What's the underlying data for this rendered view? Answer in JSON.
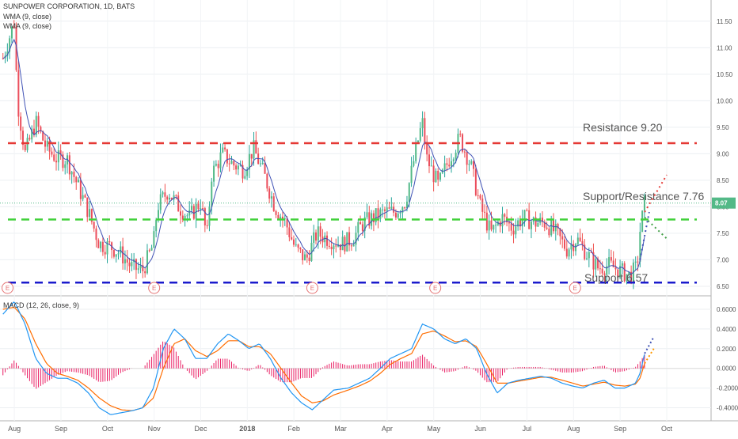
{
  "chart_data": [
    {
      "type": "candlestick",
      "title": "SUNPOWER CORPORATION, 1D, BATS",
      "indicators": [
        "WMA (9, close)",
        "WMA (9, close)"
      ],
      "y_ticks": [
        6.5,
        7.0,
        7.5,
        8.0,
        8.5,
        9.0,
        9.5,
        10.0,
        10.5,
        11.0,
        11.5
      ],
      "y_tick_labels": [
        "6.50",
        "7.00",
        "7.50",
        "8.00",
        "8.50",
        "9.00",
        "9.50",
        "10.00",
        "10.50",
        "11.00",
        "11.50"
      ],
      "ylim": [
        6.35,
        11.9
      ],
      "x_ticks": [
        "Aug",
        "Sep",
        "Oct",
        "Nov",
        "Dec",
        "2018",
        "Feb",
        "Mar",
        "Apr",
        "May",
        "Jun",
        "Jul",
        "Aug",
        "Sep",
        "Oct"
      ],
      "current_price": "8.07",
      "current_value": 8.07,
      "price_path": [
        [
          "Jul 24",
          10.8
        ],
        [
          "Aug 01",
          11.5
        ],
        [
          "Aug 03",
          10.0
        ],
        [
          "Aug 08",
          9.0
        ],
        [
          "Aug 15",
          9.6
        ],
        [
          "Aug 22",
          9.1
        ],
        [
          "Aug 29",
          8.9
        ],
        [
          "Sep 05",
          8.9
        ],
        [
          "Sep 12",
          8.4
        ],
        [
          "Sep 19",
          7.9
        ],
        [
          "Sep 26",
          7.3
        ],
        [
          "Oct 03",
          7.25
        ],
        [
          "Oct 10",
          7.1
        ],
        [
          "Oct 17",
          6.85
        ],
        [
          "Oct 24",
          6.8
        ],
        [
          "Oct 31",
          7.3
        ],
        [
          "Nov 03",
          8.0
        ],
        [
          "Nov 10",
          8.3
        ],
        [
          "Nov 17",
          8.0
        ],
        [
          "Nov 24",
          7.8
        ],
        [
          "Dec 01",
          8.1
        ],
        [
          "Dec 05",
          7.4
        ],
        [
          "Dec 08",
          8.6
        ],
        [
          "Dec 15",
          9.0
        ],
        [
          "Dec 22",
          8.8
        ],
        [
          "Dec 29",
          8.7
        ],
        [
          "Jan 05",
          9.1
        ],
        [
          "Jan 12",
          8.6
        ],
        [
          "Jan 19",
          8.0
        ],
        [
          "Jan 26",
          7.7
        ],
        [
          "Feb 02",
          7.2
        ],
        [
          "Feb 09",
          7.0
        ],
        [
          "Feb 16",
          7.5
        ],
        [
          "Feb 23",
          7.4
        ],
        [
          "Mar 02",
          7.3
        ],
        [
          "Mar 09",
          7.4
        ],
        [
          "Mar 16",
          7.7
        ],
        [
          "Mar 23",
          7.8
        ],
        [
          "Mar 30",
          7.9
        ],
        [
          "Apr 06",
          7.9
        ],
        [
          "Apr 13",
          8.1
        ],
        [
          "Apr 20",
          9.1
        ],
        [
          "Apr 24",
          9.6
        ],
        [
          "Apr 27",
          8.9
        ],
        [
          "May 04",
          8.4
        ],
        [
          "May 11",
          8.9
        ],
        [
          "May 18",
          9.3
        ],
        [
          "May 25",
          8.8
        ],
        [
          "Jun 01",
          8.0
        ],
        [
          "Jun 08",
          7.5
        ],
        [
          "Jun 15",
          7.8
        ],
        [
          "Jun 22",
          7.6
        ],
        [
          "Jun 29",
          7.8
        ],
        [
          "Jul 06",
          7.7
        ],
        [
          "Jul 13",
          7.7
        ],
        [
          "Jul 20",
          7.5
        ],
        [
          "Jul 27",
          7.2
        ],
        [
          "Aug 03",
          7.4
        ],
        [
          "Aug 10",
          7.1
        ],
        [
          "Aug 17",
          6.85
        ],
        [
          "Aug 24",
          6.9
        ],
        [
          "Aug 31",
          6.8
        ],
        [
          "Sep 07",
          6.7
        ],
        [
          "Sep 12",
          6.85
        ],
        [
          "Sep 14",
          7.55
        ],
        [
          "Sep 17",
          8.07
        ]
      ],
      "projections": [
        {
          "color": "#e53935",
          "from": [
            "Sep 17",
            7.9
          ],
          "to": [
            "Oct 01",
            8.6
          ]
        },
        {
          "color": "#43a047",
          "from": [
            "Sep 17",
            7.8
          ],
          "to": [
            "Oct 01",
            7.4
          ]
        },
        {
          "color": "#3f51b5",
          "from": [
            "Sep 14",
            7.0
          ],
          "to": [
            "Sep 20",
            7.9
          ]
        }
      ],
      "levels": [
        {
          "label": "Resistance 9.20",
          "value": 9.2,
          "color": "#e53935"
        },
        {
          "label": "Support/Resistance 7.76",
          "value": 7.76,
          "color": "#43d13c"
        },
        {
          "label": "Support 6.57",
          "value": 6.57,
          "color": "#1a1acc"
        }
      ],
      "event_markers": [
        "E",
        "E",
        "E",
        "E",
        "E"
      ],
      "event_dates": [
        "Jul 27",
        "Nov 01",
        "Feb 13",
        "May 02",
        "Aug 02"
      ],
      "grid": true
    },
    {
      "type": "line",
      "title": "MACD (12, 26, close, 9)",
      "y_ticks": [
        -0.4,
        -0.2,
        0.0,
        0.2,
        0.4,
        0.6
      ],
      "y_tick_labels": [
        "-0.4000",
        "-0.2000",
        "0.0000",
        "0.2000",
        "0.4000",
        "0.6000"
      ],
      "ylim": [
        -0.5,
        0.72
      ],
      "series": [
        {
          "name": "MACD",
          "color": "#2196f3",
          "points": [
            [
              "Jul 24",
              0.55
            ],
            [
              "Aug 01",
              0.68
            ],
            [
              "Aug 08",
              0.45
            ],
            [
              "Aug 15",
              0.1
            ],
            [
              "Aug 22",
              -0.05
            ],
            [
              "Aug 29",
              -0.1
            ],
            [
              "Sep 05",
              -0.1
            ],
            [
              "Sep 12",
              -0.15
            ],
            [
              "Sep 19",
              -0.25
            ],
            [
              "Sep 26",
              -0.4
            ],
            [
              "Oct 03",
              -0.47
            ],
            [
              "Oct 10",
              -0.45
            ],
            [
              "Oct 17",
              -0.43
            ],
            [
              "Oct 24",
              -0.4
            ],
            [
              "Oct 31",
              -0.2
            ],
            [
              "Nov 07",
              0.2
            ],
            [
              "Nov 14",
              0.4
            ],
            [
              "Nov 21",
              0.3
            ],
            [
              "Nov 28",
              0.1
            ],
            [
              "Dec 05",
              0.1
            ],
            [
              "Dec 12",
              0.25
            ],
            [
              "Dec 19",
              0.35
            ],
            [
              "Dec 26",
              0.28
            ],
            [
              "Jan 02",
              0.2
            ],
            [
              "Jan 09",
              0.25
            ],
            [
              "Jan 16",
              0.1
            ],
            [
              "Jan 23",
              -0.1
            ],
            [
              "Jan 30",
              -0.25
            ],
            [
              "Feb 06",
              -0.35
            ],
            [
              "Feb 13",
              -0.42
            ],
            [
              "Feb 20",
              -0.32
            ],
            [
              "Feb 27",
              -0.22
            ],
            [
              "Mar 06",
              -0.2
            ],
            [
              "Mar 13",
              -0.15
            ],
            [
              "Mar 20",
              -0.1
            ],
            [
              "Mar 27",
              0.0
            ],
            [
              "Apr 03",
              0.1
            ],
            [
              "Apr 10",
              0.15
            ],
            [
              "Apr 17",
              0.2
            ],
            [
              "Apr 24",
              0.45
            ],
            [
              "May 01",
              0.4
            ],
            [
              "May 08",
              0.3
            ],
            [
              "May 15",
              0.25
            ],
            [
              "May 22",
              0.3
            ],
            [
              "May 29",
              0.2
            ],
            [
              "Jun 05",
              -0.05
            ],
            [
              "Jun 12",
              -0.25
            ],
            [
              "Jun 19",
              -0.15
            ],
            [
              "Jun 26",
              -0.12
            ],
            [
              "Jul 03",
              -0.1
            ],
            [
              "Jul 10",
              -0.08
            ],
            [
              "Jul 17",
              -0.1
            ],
            [
              "Jul 24",
              -0.15
            ],
            [
              "Jul 31",
              -0.18
            ],
            [
              "Aug 07",
              -0.2
            ],
            [
              "Aug 14",
              -0.15
            ],
            [
              "Aug 21",
              -0.12
            ],
            [
              "Aug 28",
              -0.2
            ],
            [
              "Sep 04",
              -0.2
            ],
            [
              "Sep 11",
              -0.15
            ],
            [
              "Sep 14",
              -0.05
            ],
            [
              "Sep 17",
              0.15
            ]
          ]
        },
        {
          "name": "Signal",
          "color": "#ff6d00",
          "points": [
            [
              "Jul 24",
              0.6
            ],
            [
              "Aug 01",
              0.62
            ],
            [
              "Aug 08",
              0.5
            ],
            [
              "Aug 15",
              0.25
            ],
            [
              "Aug 22",
              0.05
            ],
            [
              "Aug 29",
              -0.05
            ],
            [
              "Sep 05",
              -0.08
            ],
            [
              "Sep 12",
              -0.12
            ],
            [
              "Sep 19",
              -0.2
            ],
            [
              "Sep 26",
              -0.3
            ],
            [
              "Oct 03",
              -0.38
            ],
            [
              "Oct 10",
              -0.42
            ],
            [
              "Oct 17",
              -0.43
            ],
            [
              "Oct 24",
              -0.4
            ],
            [
              "Oct 31",
              -0.3
            ],
            [
              "Nov 07",
              0.0
            ],
            [
              "Nov 14",
              0.25
            ],
            [
              "Nov 21",
              0.3
            ],
            [
              "Nov 28",
              0.18
            ],
            [
              "Dec 05",
              0.12
            ],
            [
              "Dec 12",
              0.18
            ],
            [
              "Dec 19",
              0.28
            ],
            [
              "Dec 26",
              0.28
            ],
            [
              "Jan 02",
              0.22
            ],
            [
              "Jan 09",
              0.22
            ],
            [
              "Jan 16",
              0.15
            ],
            [
              "Jan 23",
              0.0
            ],
            [
              "Jan 30",
              -0.15
            ],
            [
              "Feb 06",
              -0.28
            ],
            [
              "Feb 13",
              -0.35
            ],
            [
              "Feb 20",
              -0.33
            ],
            [
              "Feb 27",
              -0.27
            ],
            [
              "Mar 06",
              -0.22
            ],
            [
              "Mar 13",
              -0.18
            ],
            [
              "Mar 20",
              -0.13
            ],
            [
              "Mar 27",
              -0.05
            ],
            [
              "Apr 03",
              0.04
            ],
            [
              "Apr 10",
              0.1
            ],
            [
              "Apr 17",
              0.15
            ],
            [
              "Apr 24",
              0.35
            ],
            [
              "May 01",
              0.38
            ],
            [
              "May 08",
              0.33
            ],
            [
              "May 15",
              0.27
            ],
            [
              "May 22",
              0.28
            ],
            [
              "May 29",
              0.22
            ],
            [
              "Jun 05",
              0.05
            ],
            [
              "Jun 12",
              -0.15
            ],
            [
              "Jun 19",
              -0.15
            ],
            [
              "Jun 26",
              -0.13
            ],
            [
              "Jul 03",
              -0.11
            ],
            [
              "Jul 10",
              -0.09
            ],
            [
              "Jul 17",
              -0.09
            ],
            [
              "Jul 24",
              -0.12
            ],
            [
              "Jul 31",
              -0.15
            ],
            [
              "Aug 07",
              -0.18
            ],
            [
              "Aug 14",
              -0.16
            ],
            [
              "Aug 21",
              -0.14
            ],
            [
              "Aug 28",
              -0.17
            ],
            [
              "Sep 04",
              -0.18
            ],
            [
              "Sep 11",
              -0.16
            ],
            [
              "Sep 14",
              -0.1
            ],
            [
              "Sep 17",
              0.05
            ]
          ]
        }
      ],
      "histogram_color": "#e91e63"
    }
  ]
}
